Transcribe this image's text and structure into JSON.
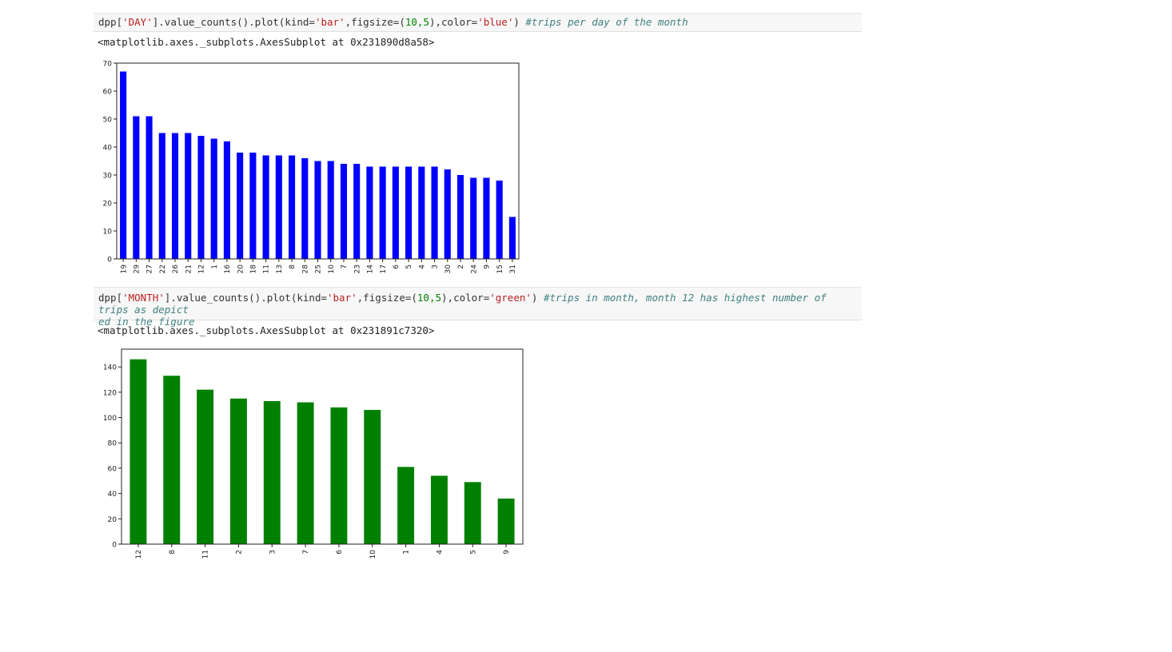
{
  "cell1": {
    "code_prefix": "dpp[",
    "code_str1": "'DAY'",
    "code_mid": "].value_counts().plot(kind=",
    "code_str2": "'bar'",
    "code_mid2": ",figsize=(",
    "code_num": "10,5",
    "code_mid3": "),color=",
    "code_str3": "'blue'",
    "code_end": ") ",
    "code_comment": "#trips per day of the month",
    "output": "<matplotlib.axes._subplots.AxesSubplot at 0x231890d8a58>"
  },
  "cell2": {
    "code_prefix": "dpp[",
    "code_str1": "'MONTH'",
    "code_mid": "].value_counts().plot(kind=",
    "code_str2": "'bar'",
    "code_mid2": ",figsize=(",
    "code_num": "10,5",
    "code_mid3": "),color=",
    "code_str3": "'green'",
    "code_end": ") ",
    "code_comment": "#trips in month, month 12 has highest number of trips as depict\ned in the figure",
    "output": "<matplotlib.axes._subplots.AxesSubplot at 0x231891c7320>"
  },
  "chart_data": [
    {
      "type": "bar",
      "color": "#0000ff",
      "categories": [
        "19",
        "29",
        "27",
        "22",
        "26",
        "21",
        "12",
        "1",
        "16",
        "20",
        "18",
        "11",
        "13",
        "8",
        "28",
        "25",
        "10",
        "7",
        "23",
        "14",
        "17",
        "6",
        "5",
        "4",
        "3",
        "30",
        "2",
        "24",
        "9",
        "15",
        "31"
      ],
      "values": [
        67,
        51,
        51,
        45,
        45,
        45,
        44,
        43,
        42,
        38,
        38,
        37,
        37,
        37,
        36,
        35,
        35,
        34,
        34,
        33,
        33,
        33,
        33,
        33,
        33,
        32,
        30,
        29,
        29,
        28,
        15
      ],
      "ylim": [
        0,
        70
      ],
      "yticks": [
        0,
        10,
        20,
        30,
        40,
        50,
        60,
        70
      ],
      "title": "",
      "xlabel": "",
      "ylabel": ""
    },
    {
      "type": "bar",
      "color": "#008000",
      "categories": [
        "12",
        "8",
        "11",
        "2",
        "3",
        "7",
        "6",
        "10",
        "1",
        "4",
        "5",
        "9"
      ],
      "values": [
        146,
        133,
        122,
        115,
        113,
        112,
        108,
        106,
        61,
        54,
        49,
        36
      ],
      "ylim": [
        0,
        154
      ],
      "yticks": [
        0,
        20,
        40,
        60,
        80,
        100,
        120,
        140
      ],
      "title": "",
      "xlabel": "",
      "ylabel": ""
    }
  ]
}
